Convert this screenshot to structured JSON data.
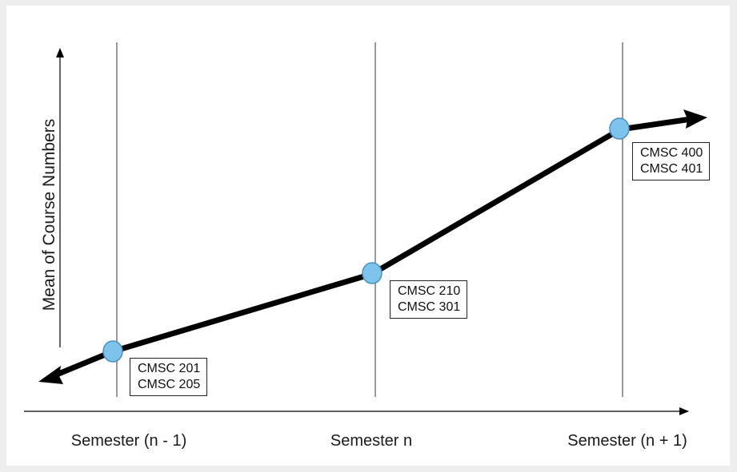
{
  "diagram": {
    "y_axis_title": "Mean of Course Numbers",
    "semesters": [
      {
        "label": "Semester (n - 1)",
        "courses": [
          "CMSC 201",
          "CMSC 205"
        ]
      },
      {
        "label": "Semester n",
        "courses": [
          "CMSC 210",
          "CMSC 301"
        ]
      },
      {
        "label": "Semester (n + 1)",
        "courses": [
          "CMSC 400",
          "CMSC 401"
        ]
      }
    ],
    "colors": {
      "trend_line": "#000000",
      "node_fill": "#7ec3ec",
      "node_stroke": "#4a90c0",
      "axis": "#000000",
      "divider": "#333333"
    }
  }
}
